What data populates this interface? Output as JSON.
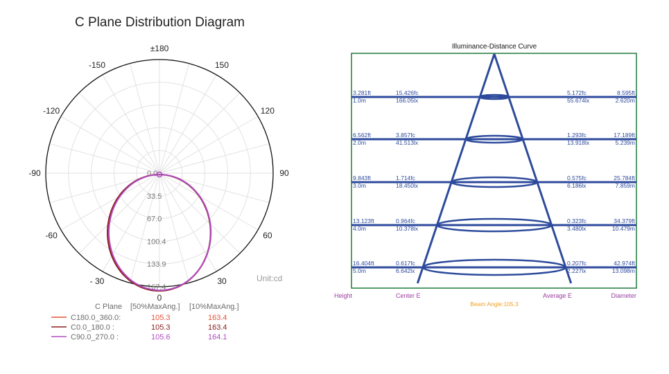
{
  "page_title": "C Plane Distribution Diagram",
  "colors": {
    "c180_360": "#e0543a",
    "c0_180": "#8b2020",
    "c90_270": "#b04cc0",
    "curve_blue": "#2d4a9c",
    "frame_green": "#1e7a3a",
    "purple_label": "#9b3ea0",
    "orange_label": "#f0a020"
  },
  "chart_data": [
    {
      "type": "polar",
      "title": "",
      "unit_label": "Unit:cd",
      "angle_labels": [
        "±180",
        "150",
        "120",
        "90",
        "60",
        "30",
        "0",
        "- 30",
        "-60",
        "-90",
        "-120",
        "-150"
      ],
      "radial_ticks": [
        "0.0",
        "33.5",
        "67.0",
        "100.4",
        "133.9",
        "167.4"
      ],
      "rmax": 167.4,
      "legend_header": [
        "C Plane",
        "[50%MaxAng.]",
        "[10%MaxAng.]"
      ],
      "series": [
        {
          "name": "C180.0_360.0:",
          "v50": "105.3",
          "v10": "163.4"
        },
        {
          "name": "C0.0_180.0  :",
          "v50": "105.3",
          "v10": "163.4"
        },
        {
          "name": "C90.0_270.0 :",
          "v50": "105.6",
          "v10": "164.1"
        }
      ]
    },
    {
      "type": "illuminance-distance",
      "title": "Illuminance-Distance Curve",
      "beam_angle_label": "Beam Angle:105.3",
      "axis_labels": [
        "Height",
        "Center E",
        "Average E",
        "Diameter"
      ],
      "rows": [
        {
          "height_ft": "3.281ft",
          "height_m": "1.0m",
          "center_fc": "15.426fc",
          "center_lx": "166.05lx",
          "avg_fc": "5.172fc",
          "avg_lx": "55.674lx",
          "dia_ft": "8.595ft",
          "dia_m": "2.620m"
        },
        {
          "height_ft": "6.562ft",
          "height_m": "2.0m",
          "center_fc": "3.857fc",
          "center_lx": "41.513lx",
          "avg_fc": "1.293fc",
          "avg_lx": "13.918lx",
          "dia_ft": "17.189ft",
          "dia_m": "5.239m"
        },
        {
          "height_ft": "9.843ft",
          "height_m": "3.0m",
          "center_fc": "1.714fc",
          "center_lx": "18.450lx",
          "avg_fc": "0.575fc",
          "avg_lx": "6.186lx",
          "dia_ft": "25.784ft",
          "dia_m": "7.859m"
        },
        {
          "height_ft": "13.123ft",
          "height_m": "4.0m",
          "center_fc": "0.964fc",
          "center_lx": "10.378lx",
          "avg_fc": "0.323fc",
          "avg_lx": "3.480lx",
          "dia_ft": "34.379ft",
          "dia_m": "10.479m"
        },
        {
          "height_ft": "16.404ft",
          "height_m": "5.0m",
          "center_fc": "0.617fc",
          "center_lx": "6.642lx",
          "avg_fc": "0.207fc",
          "avg_lx": "2.227lx",
          "dia_ft": "42.974ft",
          "dia_m": "13.098m"
        }
      ]
    }
  ]
}
